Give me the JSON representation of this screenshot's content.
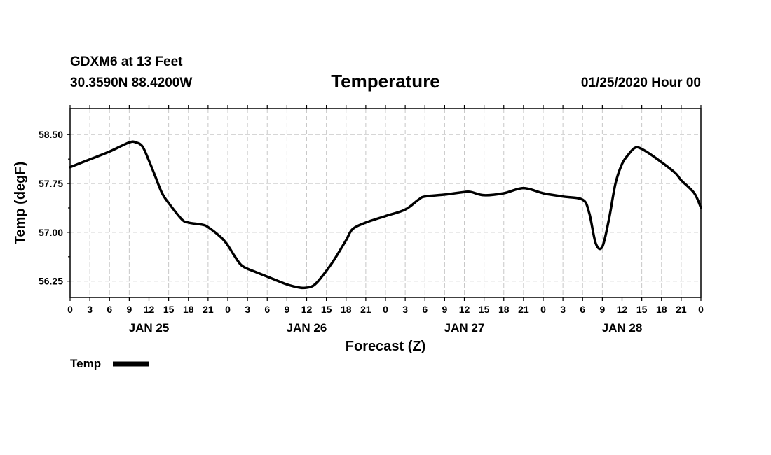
{
  "header": {
    "station": "GDXM6 at 13 Feet",
    "location": "30.3590N 88.4200W",
    "title": "Temperature",
    "timestamp": "01/25/2020 Hour 00"
  },
  "chart_data": {
    "type": "line",
    "title": "Temperature",
    "xlabel": "Forecast (Z)",
    "ylabel": "Temp (degF)",
    "xlim": [
      0,
      96
    ],
    "ylim": [
      56.0,
      58.9
    ],
    "grid": true,
    "x_ticks": [
      {
        "hour": 0,
        "label": "0"
      },
      {
        "hour": 3,
        "label": "3"
      },
      {
        "hour": 6,
        "label": "6"
      },
      {
        "hour": 9,
        "label": "9"
      },
      {
        "hour": 12,
        "label": "12"
      },
      {
        "hour": 15,
        "label": "15"
      },
      {
        "hour": 18,
        "label": "18"
      },
      {
        "hour": 21,
        "label": "21"
      },
      {
        "hour": 24,
        "label": "0"
      },
      {
        "hour": 27,
        "label": "3"
      },
      {
        "hour": 30,
        "label": "6"
      },
      {
        "hour": 33,
        "label": "9"
      },
      {
        "hour": 36,
        "label": "12"
      },
      {
        "hour": 39,
        "label": "15"
      },
      {
        "hour": 42,
        "label": "18"
      },
      {
        "hour": 45,
        "label": "21"
      },
      {
        "hour": 48,
        "label": "0"
      },
      {
        "hour": 51,
        "label": "3"
      },
      {
        "hour": 54,
        "label": "6"
      },
      {
        "hour": 57,
        "label": "9"
      },
      {
        "hour": 60,
        "label": "12"
      },
      {
        "hour": 63,
        "label": "15"
      },
      {
        "hour": 66,
        "label": "18"
      },
      {
        "hour": 69,
        "label": "21"
      },
      {
        "hour": 72,
        "label": "0"
      },
      {
        "hour": 75,
        "label": "3"
      },
      {
        "hour": 78,
        "label": "6"
      },
      {
        "hour": 81,
        "label": "9"
      },
      {
        "hour": 84,
        "label": "12"
      },
      {
        "hour": 87,
        "label": "15"
      },
      {
        "hour": 90,
        "label": "18"
      },
      {
        "hour": 93,
        "label": "21"
      },
      {
        "hour": 96,
        "label": "0"
      }
    ],
    "y_ticks": [
      {
        "value": 56.25,
        "label": "56.25"
      },
      {
        "value": 57.0,
        "label": "57.00"
      },
      {
        "value": 57.75,
        "label": "57.75"
      },
      {
        "value": 58.5,
        "label": "58.50"
      }
    ],
    "day_labels": [
      {
        "hour": 12,
        "label": "JAN 25"
      },
      {
        "hour": 36,
        "label": "JAN 26"
      },
      {
        "hour": 60,
        "label": "JAN 27"
      },
      {
        "hour": 84,
        "label": "JAN 28"
      }
    ],
    "series": [
      {
        "name": "Temp",
        "x": [
          0,
          3,
          6,
          9,
          10,
          11,
          12,
          13,
          14,
          15,
          17,
          18,
          20,
          21,
          23,
          24,
          25,
          26,
          27,
          28,
          30,
          33,
          35,
          36,
          37,
          38,
          40,
          42,
          43,
          45,
          48,
          51,
          53,
          54,
          57,
          60,
          61,
          63,
          66,
          69,
          72,
          75,
          78,
          79,
          80,
          81,
          82,
          83,
          84,
          85,
          86,
          87,
          89,
          92,
          93,
          95,
          96
        ],
        "y": [
          58.0,
          58.12,
          58.24,
          58.38,
          58.38,
          58.32,
          58.1,
          57.85,
          57.6,
          57.45,
          57.2,
          57.15,
          57.12,
          57.08,
          56.92,
          56.8,
          56.64,
          56.5,
          56.44,
          56.4,
          56.32,
          56.2,
          56.15,
          56.15,
          56.18,
          56.28,
          56.55,
          56.88,
          57.05,
          57.15,
          57.25,
          57.35,
          57.5,
          57.55,
          57.58,
          57.62,
          57.62,
          57.57,
          57.6,
          57.68,
          57.6,
          57.55,
          57.5,
          57.3,
          56.83,
          56.78,
          57.2,
          57.75,
          58.05,
          58.2,
          58.3,
          58.28,
          58.15,
          57.92,
          57.8,
          57.6,
          57.38
        ]
      }
    ],
    "legend": {
      "position": "bottom-left",
      "entries": [
        "Temp"
      ]
    }
  }
}
